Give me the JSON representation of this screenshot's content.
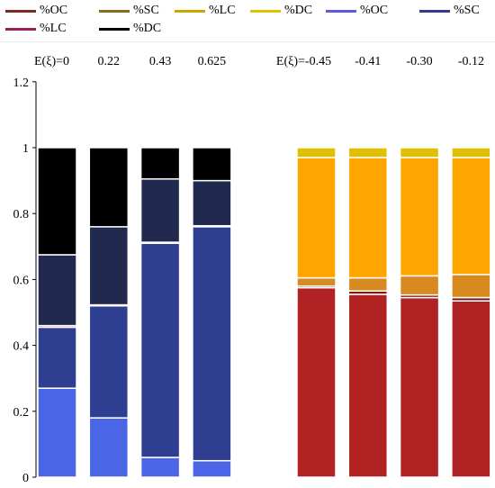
{
  "legend": [
    {
      "label": "%OC",
      "color": "#7a2a1e"
    },
    {
      "label": "%SC",
      "color": "#8a6a1e"
    },
    {
      "label": "%LC",
      "color": "#c8a800"
    },
    {
      "label": "%DC",
      "color": "#e0c000"
    },
    {
      "label": "%OC",
      "color": "#5a5ae0"
    },
    {
      "label": "%SC",
      "color": "#3a3a8a"
    },
    {
      "label": "%LC",
      "color": "#9a1e5a"
    },
    {
      "label": "%DC",
      "color": "#000000"
    }
  ],
  "chart_data": {
    "type": "bar",
    "stacked": true,
    "ylim": [
      0,
      1.2
    ],
    "yticks": [
      "0",
      "0.2",
      "0.4",
      "0.6",
      "0.8",
      "1",
      "1.2"
    ],
    "grid": false,
    "legend_position": "top",
    "groups": [
      {
        "annotation_prefix": "E(ξ)=",
        "categories": [
          "0",
          "0.22",
          "0.43",
          "0.625"
        ],
        "series": [
          {
            "name": "%OC",
            "color": "#4a66e6",
            "values": [
              0.27,
              0.18,
              0.06,
              0.05
            ]
          },
          {
            "name": "%SC",
            "color": "#2e3f92",
            "values": [
              0.185,
              0.34,
              0.65,
              0.71
            ]
          },
          {
            "name": "%LC",
            "color": "#9a1e5a",
            "values": [
              0.005,
              0.003,
              0.003,
              0.003
            ]
          },
          {
            "name": "%DC",
            "color": "#22294f",
            "values": [
              0.215,
              0.237,
              0.192,
              0.137
            ]
          },
          {
            "name": "%DC",
            "color": "#000000",
            "values": [
              0.325,
              0.24,
              0.095,
              0.1
            ]
          }
        ]
      },
      {
        "annotation_prefix": "E(ξ)=",
        "categories": [
          "-0.45",
          "-0.41",
          "-0.30",
          "-0.12"
        ],
        "series": [
          {
            "name": "%OC",
            "color": "#b22222",
            "values": [
              0.575,
              0.555,
              0.545,
              0.535
            ]
          },
          {
            "name": "%SC",
            "color": "#7a1a12",
            "values": [
              0.005,
              0.01,
              0.008,
              0.01
            ]
          },
          {
            "name": "%LC",
            "color": "#d88a20",
            "values": [
              0.025,
              0.04,
              0.058,
              0.07
            ]
          },
          {
            "name": "%DC",
            "color": "#ffa500",
            "values": [
              0.365,
              0.365,
              0.359,
              0.355
            ]
          },
          {
            "name": "%DC",
            "color": "#e0c000",
            "values": [
              0.03,
              0.03,
              0.03,
              0.03
            ]
          }
        ]
      }
    ]
  }
}
